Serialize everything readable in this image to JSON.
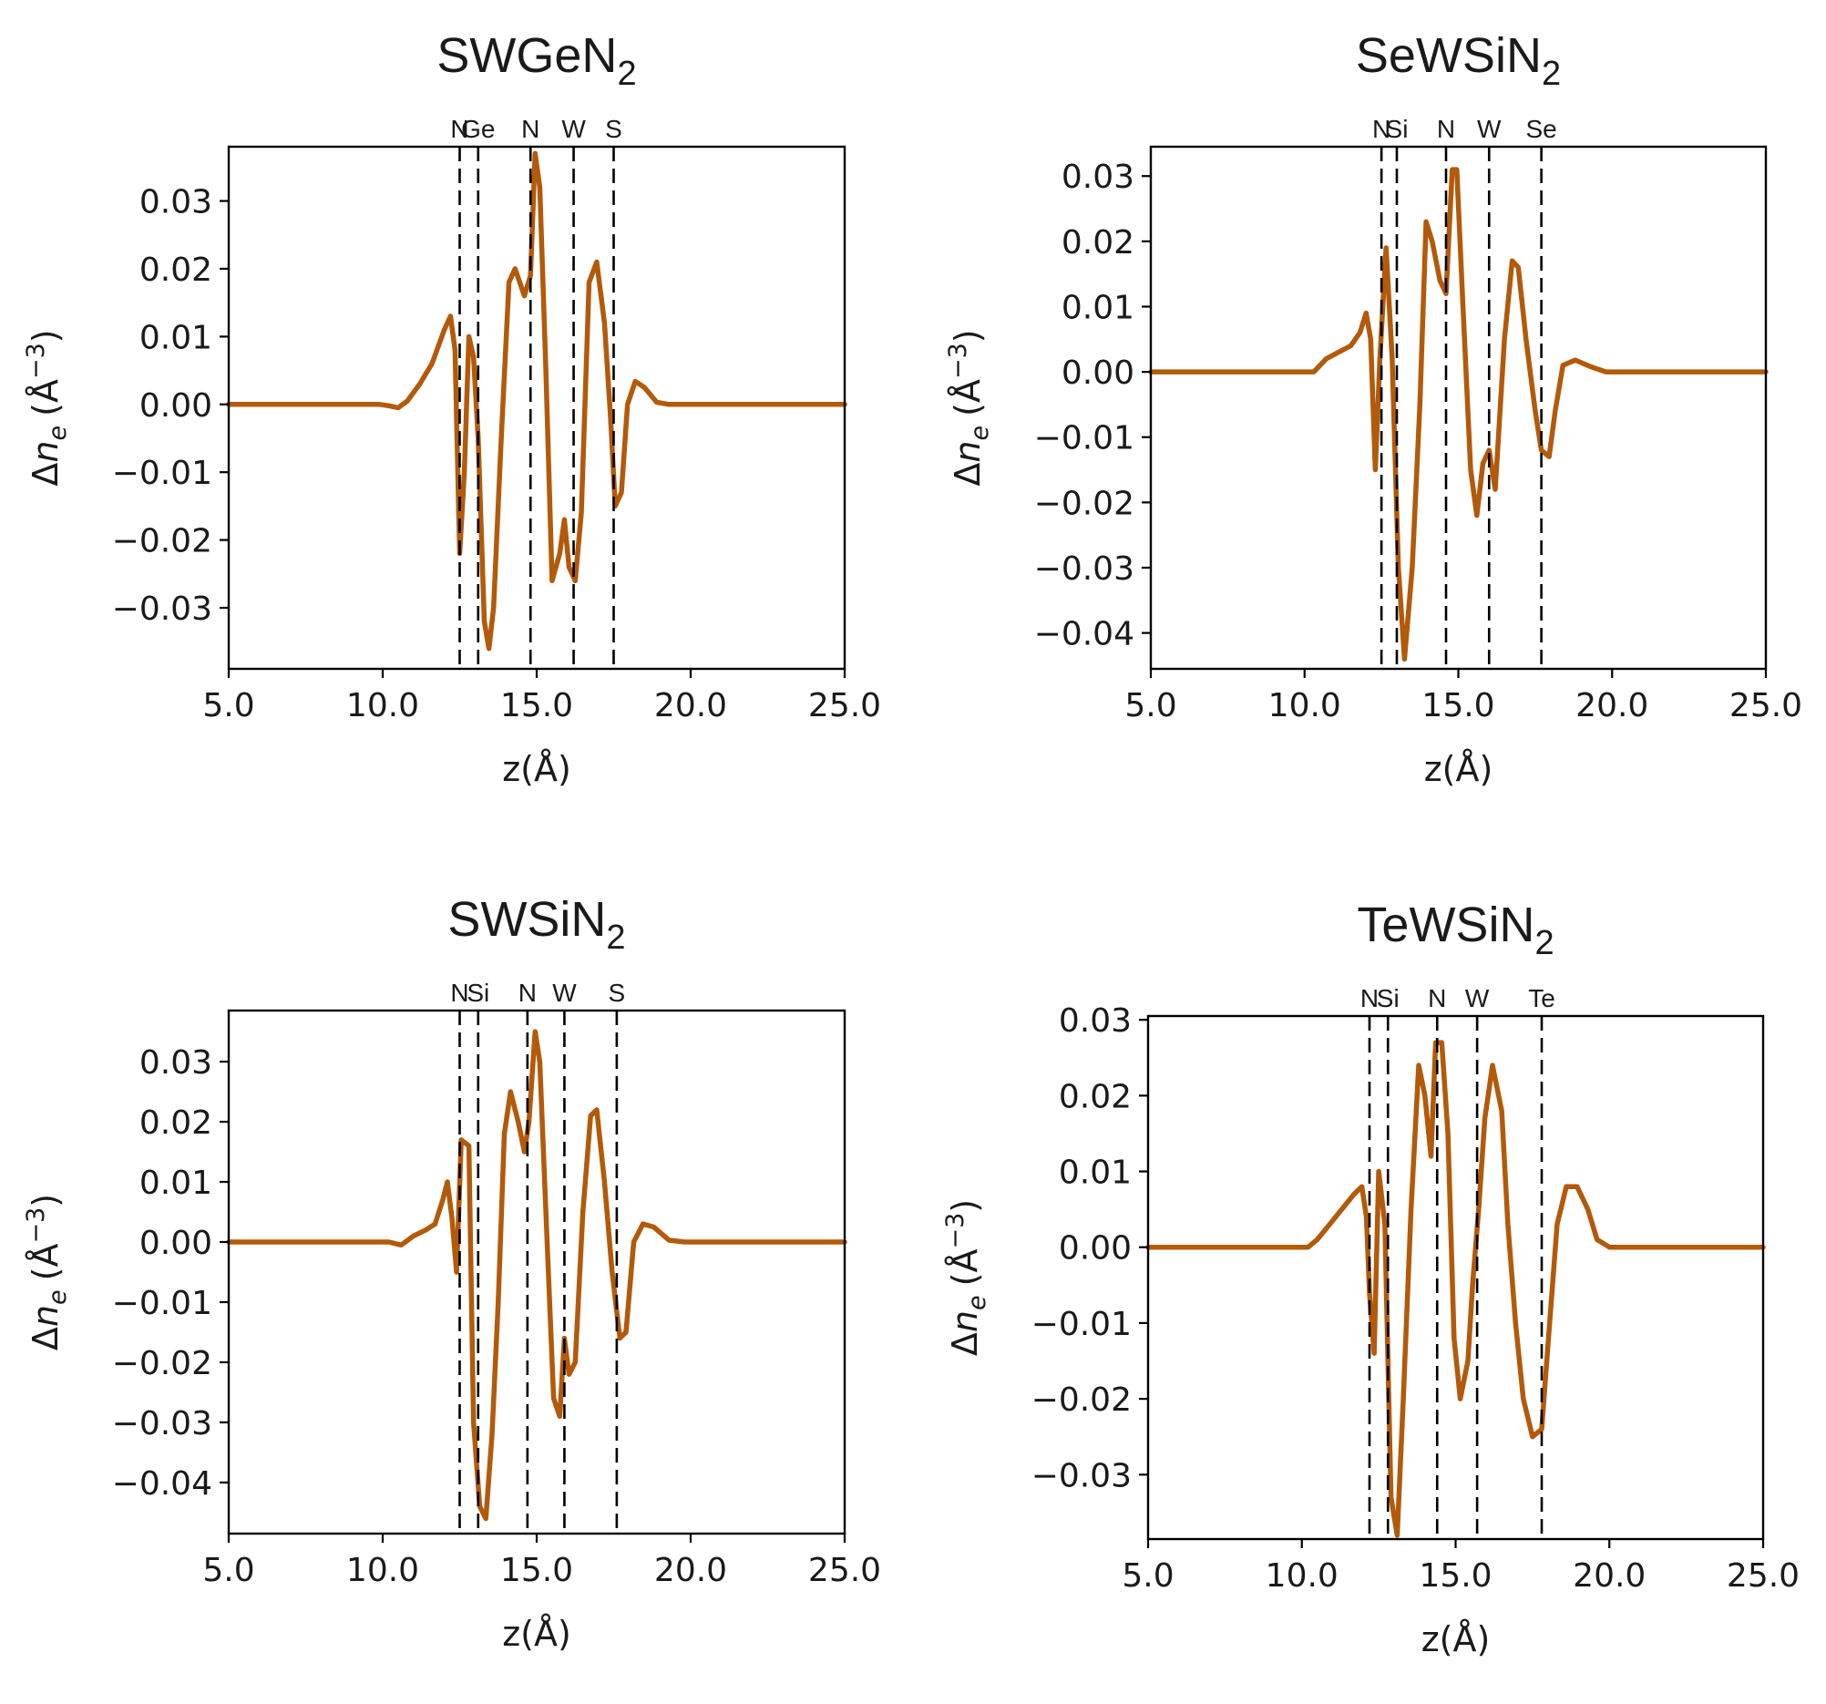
{
  "colors": {
    "series": "#b35a0a",
    "axes": "#000000"
  },
  "chart_data": [
    {
      "type": "line",
      "title": "SWGeN",
      "title_subscript": "2",
      "xlabel": "z(Å)",
      "ylabel_delta": "Δ",
      "ylabel_var": "n",
      "ylabel_sub": "e",
      "ylabel_unit": "(Å",
      "ylabel_exp": "−3",
      "ylabel_close": ")",
      "xlim": [
        5.0,
        25.0
      ],
      "ylim": [
        -0.039,
        0.038
      ],
      "xticks": [
        5.0,
        10.0,
        15.0,
        20.0,
        25.0
      ],
      "xtick_labels": [
        "5.0",
        "10.0",
        "15.0",
        "20.0",
        "25.0"
      ],
      "yticks": [
        -0.03,
        -0.02,
        -0.01,
        0.0,
        0.01,
        0.02,
        0.03
      ],
      "ytick_labels": [
        "−0.03",
        "−0.02",
        "−0.01",
        "0.00",
        "0.01",
        "0.02",
        "0.03"
      ],
      "atoms": [
        {
          "label": "N",
          "z": 12.5
        },
        {
          "label": "Ge",
          "z": 13.1
        },
        {
          "label": "N",
          "z": 14.8
        },
        {
          "label": "W",
          "z": 16.2
        },
        {
          "label": "S",
          "z": 17.5
        }
      ],
      "series": [
        {
          "name": "Δn_e",
          "x": [
            5.0,
            9.9,
            10.2,
            10.5,
            10.8,
            11.2,
            11.6,
            12.0,
            12.2,
            12.35,
            12.5,
            12.65,
            12.8,
            12.95,
            13.1,
            13.3,
            13.45,
            13.6,
            13.85,
            14.1,
            14.3,
            14.45,
            14.6,
            14.8,
            14.95,
            15.1,
            15.3,
            15.5,
            15.75,
            15.9,
            16.05,
            16.25,
            16.45,
            16.7,
            16.95,
            17.2,
            17.4,
            17.55,
            17.75,
            17.95,
            18.2,
            18.5,
            18.9,
            19.3,
            19.8,
            25.0
          ],
          "y": [
            0.0,
            0.0,
            -0.0002,
            -0.0005,
            0.0005,
            0.003,
            0.006,
            0.011,
            0.013,
            0.008,
            -0.022,
            -0.01,
            0.01,
            0.007,
            -0.005,
            -0.032,
            -0.036,
            -0.03,
            -0.005,
            0.018,
            0.02,
            0.018,
            0.016,
            0.019,
            0.037,
            0.032,
            0.005,
            -0.026,
            -0.022,
            -0.017,
            -0.024,
            -0.026,
            -0.016,
            0.018,
            0.021,
            0.012,
            -0.002,
            -0.015,
            -0.013,
            0.0,
            0.0034,
            0.0025,
            0.0003,
            0.0,
            0.0,
            0.0
          ]
        }
      ]
    },
    {
      "type": "line",
      "title": "SeWSiN",
      "title_subscript": "2",
      "xlabel": "z(Å)",
      "ylabel_delta": "Δ",
      "ylabel_var": "n",
      "ylabel_sub": "e",
      "ylabel_unit": "(Å",
      "ylabel_exp": "−3",
      "ylabel_close": ")",
      "xlim": [
        5.0,
        25.0
      ],
      "ylim": [
        -0.0455,
        0.0345
      ],
      "xticks": [
        5.0,
        10.0,
        15.0,
        20.0,
        25.0
      ],
      "xtick_labels": [
        "5.0",
        "10.0",
        "15.0",
        "20.0",
        "25.0"
      ],
      "yticks": [
        -0.04,
        -0.03,
        -0.02,
        -0.01,
        0.0,
        0.01,
        0.02,
        0.03
      ],
      "ytick_labels": [
        "−0.04",
        "−0.03",
        "−0.02",
        "−0.01",
        "0.00",
        "0.01",
        "0.02",
        "0.03"
      ],
      "atoms": [
        {
          "label": "N",
          "z": 12.5
        },
        {
          "label": "Si",
          "z": 13.0
        },
        {
          "label": "N",
          "z": 14.6
        },
        {
          "label": "W",
          "z": 16.0
        },
        {
          "label": "Se",
          "z": 17.7
        }
      ],
      "series": [
        {
          "name": "Δn_e",
          "x": [
            5.0,
            10.0,
            10.3,
            10.7,
            11.1,
            11.5,
            11.8,
            12.0,
            12.15,
            12.3,
            12.45,
            12.65,
            12.85,
            13.05,
            13.25,
            13.5,
            13.75,
            13.95,
            14.15,
            14.4,
            14.6,
            14.8,
            14.95,
            15.15,
            15.4,
            15.6,
            15.8,
            16.0,
            16.2,
            16.5,
            16.75,
            16.95,
            17.2,
            17.5,
            17.7,
            17.95,
            18.15,
            18.4,
            18.8,
            19.3,
            19.8,
            25.0
          ],
          "y": [
            0.0,
            0.0,
            0.0,
            0.002,
            0.003,
            0.004,
            0.006,
            0.009,
            0.005,
            -0.015,
            0.002,
            0.019,
            0.002,
            -0.03,
            -0.044,
            -0.03,
            -0.005,
            0.023,
            0.02,
            0.014,
            0.012,
            0.031,
            0.031,
            0.01,
            -0.015,
            -0.022,
            -0.014,
            -0.012,
            -0.018,
            0.005,
            0.017,
            0.016,
            0.005,
            -0.006,
            -0.012,
            -0.013,
            -0.006,
            0.001,
            0.0018,
            0.0008,
            0.0,
            0.0
          ]
        }
      ]
    },
    {
      "type": "line",
      "title": "SWSiN",
      "title_subscript": "2",
      "xlabel": "z(Å)",
      "ylabel_delta": "Δ",
      "ylabel_var": "n",
      "ylabel_sub": "e",
      "ylabel_unit": "(Å",
      "ylabel_exp": "−3",
      "ylabel_close": ")",
      "xlim": [
        5.0,
        25.0
      ],
      "ylim": [
        -0.0485,
        0.0385
      ],
      "xticks": [
        5.0,
        10.0,
        15.0,
        20.0,
        25.0
      ],
      "xtick_labels": [
        "5.0",
        "10.0",
        "15.0",
        "20.0",
        "25.0"
      ],
      "yticks": [
        -0.04,
        -0.03,
        -0.02,
        -0.01,
        0.0,
        0.01,
        0.02,
        0.03
      ],
      "ytick_labels": [
        "−0.04",
        "−0.03",
        "−0.02",
        "−0.01",
        "0.00",
        "0.01",
        "0.02",
        "0.03"
      ],
      "atoms": [
        {
          "label": "N",
          "z": 12.5
        },
        {
          "label": "Si",
          "z": 13.1
        },
        {
          "label": "N",
          "z": 14.7
        },
        {
          "label": "W",
          "z": 15.9
        },
        {
          "label": "S",
          "z": 17.6
        }
      ],
      "series": [
        {
          "name": "Δn_e",
          "x": [
            5.0,
            10.2,
            10.6,
            11.0,
            11.4,
            11.7,
            11.95,
            12.1,
            12.25,
            12.4,
            12.55,
            12.8,
            12.95,
            13.15,
            13.35,
            13.55,
            13.75,
            13.95,
            14.15,
            14.4,
            14.6,
            14.75,
            14.95,
            15.1,
            15.3,
            15.55,
            15.75,
            15.9,
            16.05,
            16.25,
            16.5,
            16.75,
            16.95,
            17.2,
            17.45,
            17.7,
            17.9,
            18.15,
            18.45,
            18.8,
            19.3,
            19.8,
            25.0
          ],
          "y": [
            0.0,
            0.0,
            -0.0005,
            0.001,
            0.002,
            0.003,
            0.007,
            0.01,
            0.004,
            -0.005,
            0.017,
            0.016,
            -0.03,
            -0.044,
            -0.046,
            -0.032,
            -0.01,
            0.018,
            0.025,
            0.02,
            0.015,
            0.02,
            0.035,
            0.03,
            0.005,
            -0.026,
            -0.029,
            -0.016,
            -0.022,
            -0.02,
            0.005,
            0.021,
            0.022,
            0.01,
            -0.005,
            -0.016,
            -0.015,
            0.0,
            0.003,
            0.0025,
            0.0003,
            0.0,
            0.0
          ]
        }
      ]
    },
    {
      "type": "line",
      "title": "TeWSiN",
      "title_subscript": "2",
      "xlabel": "z(Å)",
      "ylabel_delta": "Δ",
      "ylabel_var": "n",
      "ylabel_sub": "e",
      "ylabel_unit": "(Å",
      "ylabel_exp": "−3",
      "ylabel_close": ")",
      "xlim": [
        5.0,
        25.0
      ],
      "ylim": [
        -0.0385,
        0.0305
      ],
      "xticks": [
        5.0,
        10.0,
        15.0,
        20.0,
        25.0
      ],
      "xtick_labels": [
        "5.0",
        "10.0",
        "15.0",
        "20.0",
        "25.0"
      ],
      "yticks": [
        -0.03,
        -0.02,
        -0.01,
        0.0,
        0.01,
        0.02,
        0.03
      ],
      "ytick_labels": [
        "−0.03",
        "−0.02",
        "−0.01",
        "0.00",
        "0.01",
        "0.02",
        "0.03"
      ],
      "atoms": [
        {
          "label": "N",
          "z": 12.2
        },
        {
          "label": "Si",
          "z": 12.8
        },
        {
          "label": "N",
          "z": 14.4
        },
        {
          "label": "W",
          "z": 15.7
        },
        {
          "label": "Te",
          "z": 17.8
        }
      ],
      "series": [
        {
          "name": "Δn_e",
          "x": [
            5.0,
            10.0,
            10.2,
            10.5,
            10.9,
            11.3,
            11.7,
            11.95,
            12.1,
            12.2,
            12.35,
            12.5,
            12.7,
            12.9,
            13.1,
            13.3,
            13.55,
            13.8,
            14.0,
            14.2,
            14.35,
            14.55,
            14.75,
            14.95,
            15.15,
            15.4,
            15.55,
            15.75,
            15.95,
            16.2,
            16.5,
            16.7,
            16.95,
            17.2,
            17.5,
            17.8,
            18.0,
            18.3,
            18.6,
            18.95,
            19.3,
            19.6,
            20.0,
            25.0
          ],
          "y": [
            0.0,
            0.0,
            0.0,
            0.001,
            0.003,
            0.005,
            0.007,
            0.008,
            0.004,
            -0.006,
            -0.014,
            0.01,
            0.003,
            -0.033,
            -0.038,
            -0.02,
            0.005,
            0.024,
            0.02,
            0.012,
            0.027,
            0.027,
            0.015,
            -0.012,
            -0.02,
            -0.015,
            -0.005,
            0.005,
            0.017,
            0.024,
            0.018,
            0.003,
            -0.01,
            -0.02,
            -0.025,
            -0.024,
            -0.013,
            0.003,
            0.008,
            0.008,
            0.005,
            0.001,
            0.0,
            0.0
          ]
        }
      ]
    }
  ]
}
